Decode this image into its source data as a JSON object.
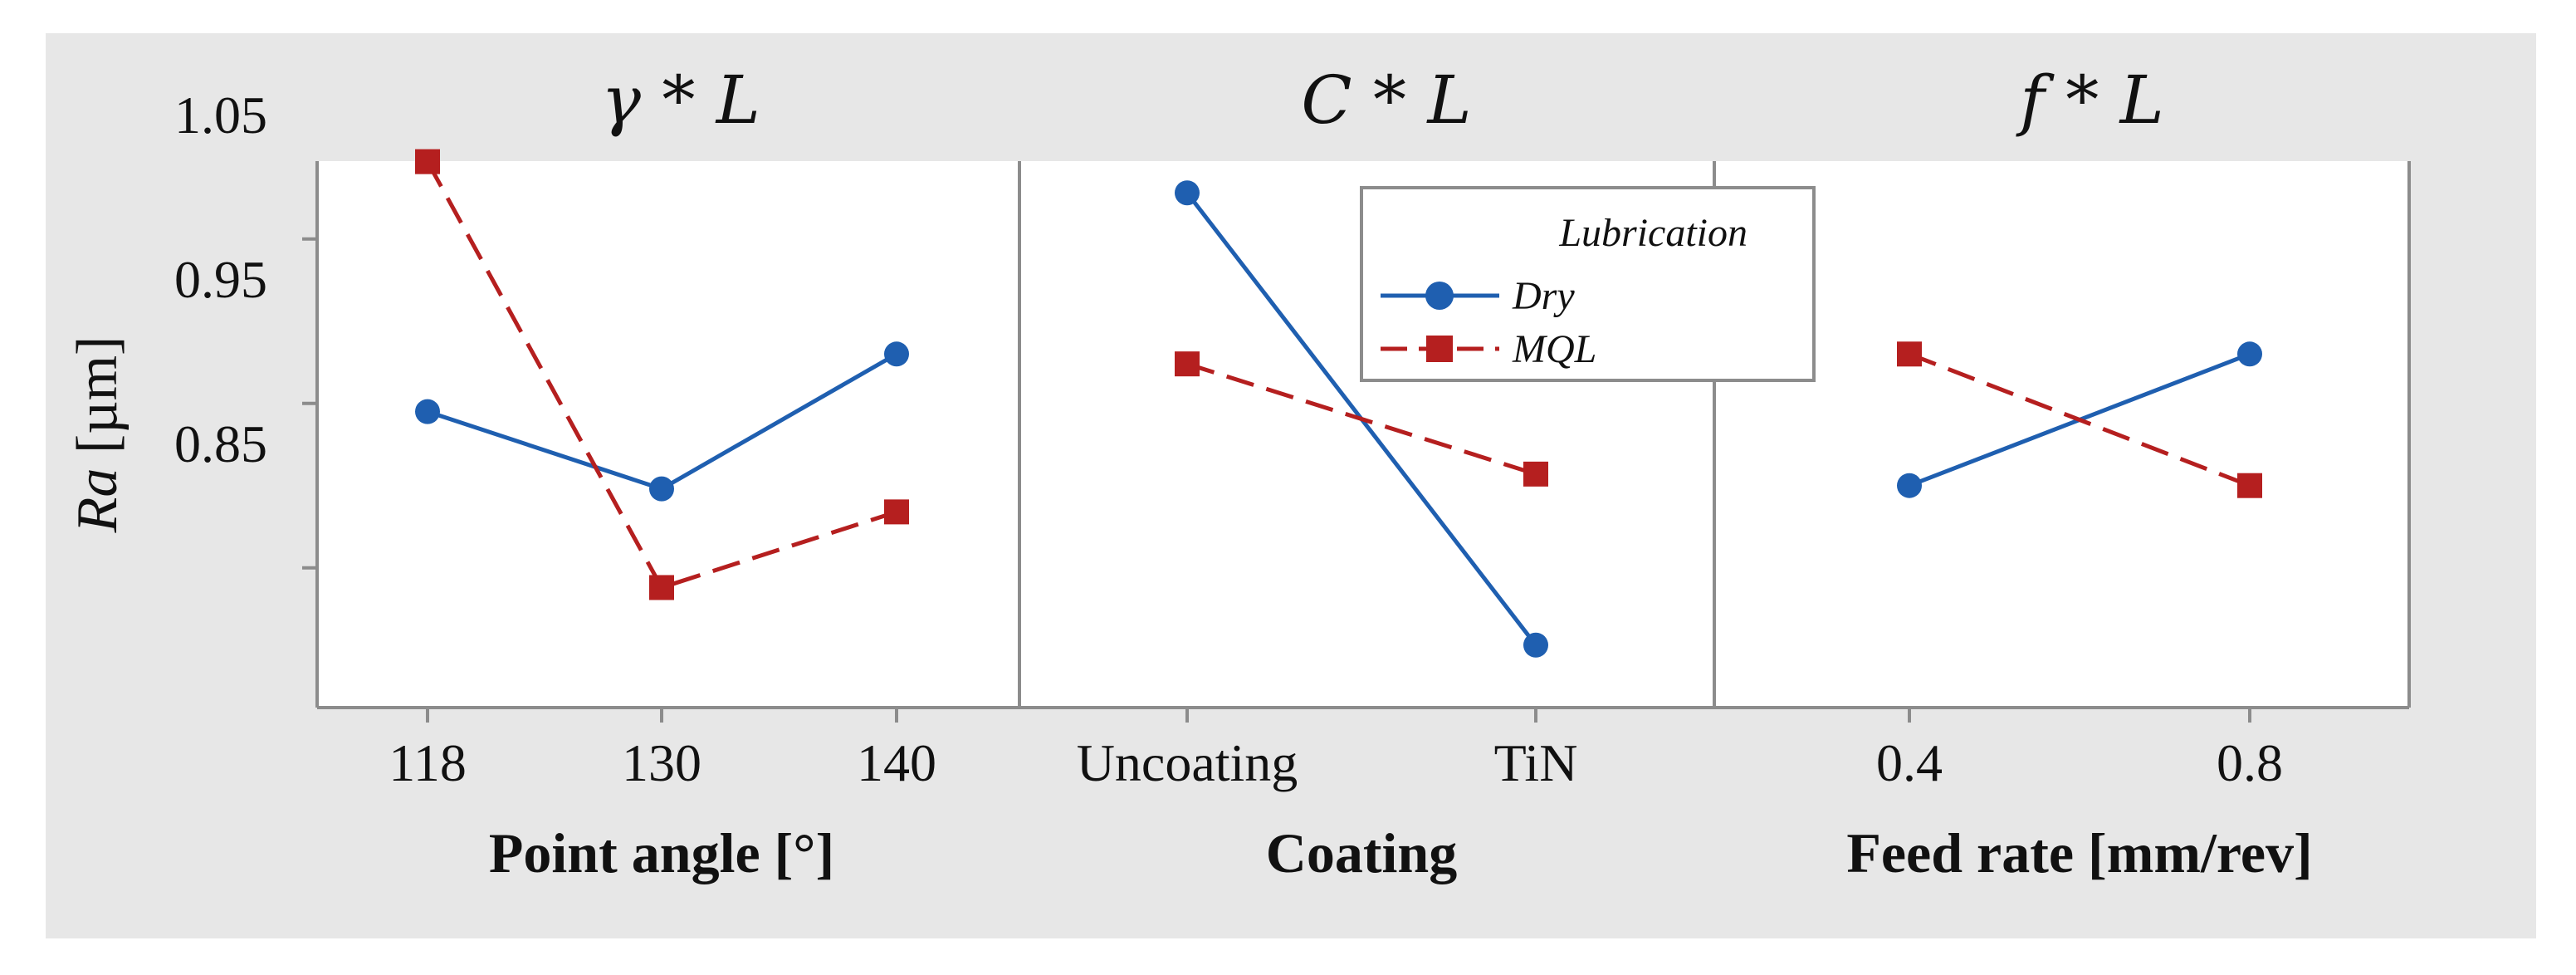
{
  "chart_data": {
    "type": "line",
    "subtype": "interaction-plot",
    "ylabel_italic": "Ra",
    "ylabel_rest": " [µm]",
    "ylim": [
      0.765,
      1.1
    ],
    "yticks": [
      0.85,
      0.95,
      1.05
    ],
    "ytick_labels": [
      "0.85",
      "0.95",
      "1.05"
    ],
    "legend": {
      "title": "Lubrication",
      "position": "top-center",
      "entries": [
        {
          "name": "Dry",
          "color": "#1f5fb0",
          "marker": "circle",
          "dash": "solid"
        },
        {
          "name": "MQL",
          "color": "#b51f1f",
          "marker": "square",
          "dash": "dashed"
        }
      ]
    },
    "panels": [
      {
        "title": "γ * L",
        "xlabel": "Point angle [°]",
        "categories": [
          "118",
          "130",
          "140"
        ],
        "series": [
          {
            "name": "Dry",
            "values": [
              0.945,
              0.898,
              0.98
            ]
          },
          {
            "name": "MQL",
            "values": [
              1.097,
              0.838,
              0.884
            ]
          }
        ]
      },
      {
        "title": "C * L",
        "xlabel": "Coating",
        "categories": [
          "Uncoating",
          "TiN"
        ],
        "series": [
          {
            "name": "Dry",
            "values": [
              1.078,
              0.803
            ]
          },
          {
            "name": "MQL",
            "values": [
              0.974,
              0.907
            ]
          }
        ]
      },
      {
        "title": "f * L",
        "xlabel": "Feed rate [mm/rev]",
        "categories": [
          "0.4",
          "0.8"
        ],
        "series": [
          {
            "name": "Dry",
            "values": [
              0.9,
              0.98
            ]
          },
          {
            "name": "MQL",
            "values": [
              0.98,
              0.9
            ]
          }
        ]
      }
    ]
  }
}
